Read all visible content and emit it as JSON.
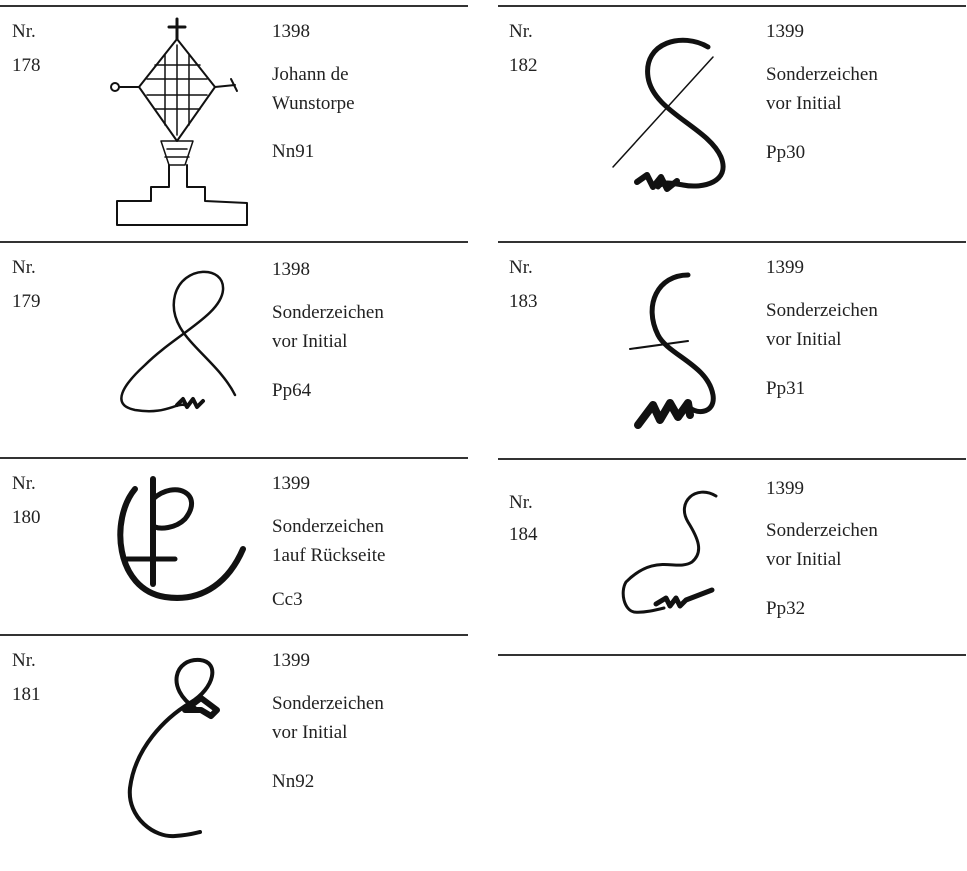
{
  "entries": [
    {
      "label": "Nr.",
      "number": "178",
      "year": "1398",
      "description": [
        "Johann de",
        "Wunstorpe"
      ],
      "code": "Nn91"
    },
    {
      "label": "Nr.",
      "number": "179",
      "year": "1398",
      "description": [
        "Sonderzeichen",
        "vor Initial"
      ],
      "code": "Pp64"
    },
    {
      "label": "Nr.",
      "number": "180",
      "year": "1399",
      "description": [
        "Sonderzeichen",
        "1auf Rückseite"
      ],
      "code": "Cc3"
    },
    {
      "label": "Nr.",
      "number": "181",
      "year": "1399",
      "description": [
        "Sonderzeichen",
        "vor Initial"
      ],
      "code": "Nn92"
    },
    {
      "label": "Nr.",
      "number": "182",
      "year": "1399",
      "description": [
        "Sonderzeichen",
        "vor Initial"
      ],
      "code": "Pp30"
    },
    {
      "label": "Nr.",
      "number": "183",
      "year": "1399",
      "description": [
        "Sonderzeichen",
        "vor Initial"
      ],
      "code": "Pp31"
    },
    {
      "label": "Nr.",
      "number": "184",
      "year": "1399",
      "description": [
        "Sonderzeichen",
        "vor Initial"
      ],
      "code": "Pp32"
    }
  ]
}
